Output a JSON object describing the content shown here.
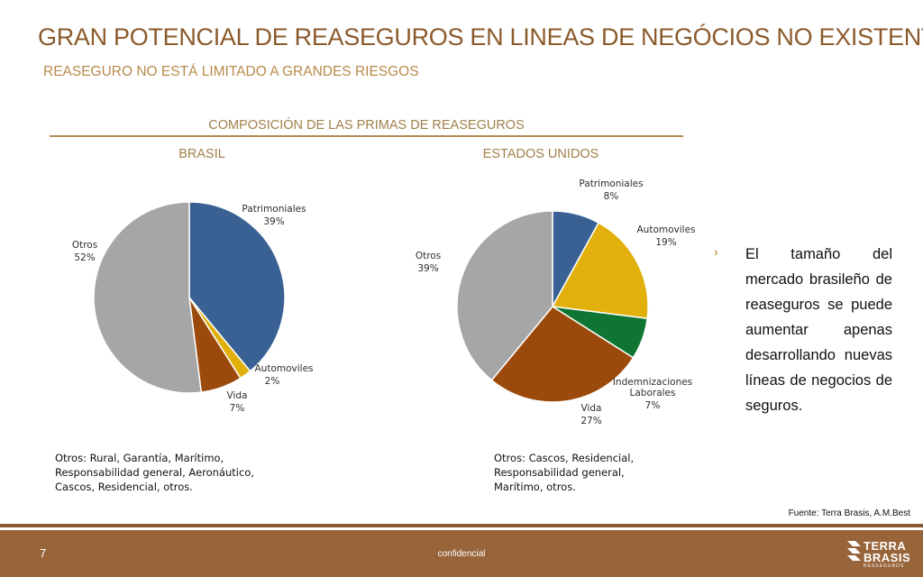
{
  "header": {
    "title": "GRAN POTENCIAL DE REASEGUROS EN LINEAS DE NEGÓCIOS NO EXISTENTES",
    "subtitle": "REASEGURO NO ESTÁ LIMITADO A GRANDES RIESGOS"
  },
  "section_title": "COMPOSICIÓN DE LAS PRIMAS DE REASEGUROS",
  "chart_data": [
    {
      "type": "pie",
      "title": "BRASIL",
      "slices": [
        {
          "label": "Patrimoniales",
          "value": 39,
          "value_label": "39%",
          "color": "#3a6194"
        },
        {
          "label": "Automoviles",
          "value": 2,
          "value_label": "2%",
          "color": "#e1b00c"
        },
        {
          "label": "Vida",
          "value": 7,
          "value_label": "7%",
          "color": "#9c4a0c"
        },
        {
          "label": "Otros",
          "value": 52,
          "value_label": "52%",
          "color": "#a6a6a6"
        }
      ],
      "note": [
        "Otros: Rural, Garantía, Marítimo,",
        "Responsabilidad general, Aeronáutico,",
        "Cascos, Residencial, otros."
      ]
    },
    {
      "type": "pie",
      "title": "ESTADOS UNIDOS",
      "slices": [
        {
          "label": "Patrimoniales",
          "value": 8,
          "value_label": "8%",
          "color": "#3a6194"
        },
        {
          "label": "Automoviles",
          "value": 19,
          "value_label": "19%",
          "color": "#e1b00c"
        },
        {
          "label": "Indemnizaciones Laborales",
          "label_lines": [
            "Indemnizaciones",
            "Laborales"
          ],
          "value": 7,
          "value_label": "7%",
          "color": "#0e7533"
        },
        {
          "label": "Vida",
          "value": 27,
          "value_label": "27%",
          "color": "#9c4a0c"
        },
        {
          "label": "Otros",
          "value": 39,
          "value_label": "39%",
          "color": "#a6a6a6"
        }
      ],
      "note": [
        "Otros: Cascos, Residencial,",
        "Responsabilidad general,",
        "Marítimo, otros."
      ]
    }
  ],
  "bullet": {
    "text": "El tamaño del mercado brasileño de reaseguros se puede aumentar apenas desarrollando nuevas líneas de negocios de seguros."
  },
  "source": "Fuente: Terra Brasis, A.M.Best",
  "footer": {
    "page_number": "7",
    "confidential": "confidencial",
    "logo_line1": "TERRA",
    "logo_line2": "BRASIS",
    "logo_small": "RESSEGUROS",
    "colors": {
      "bar": "#98643a",
      "line": "#8c5a30"
    }
  }
}
